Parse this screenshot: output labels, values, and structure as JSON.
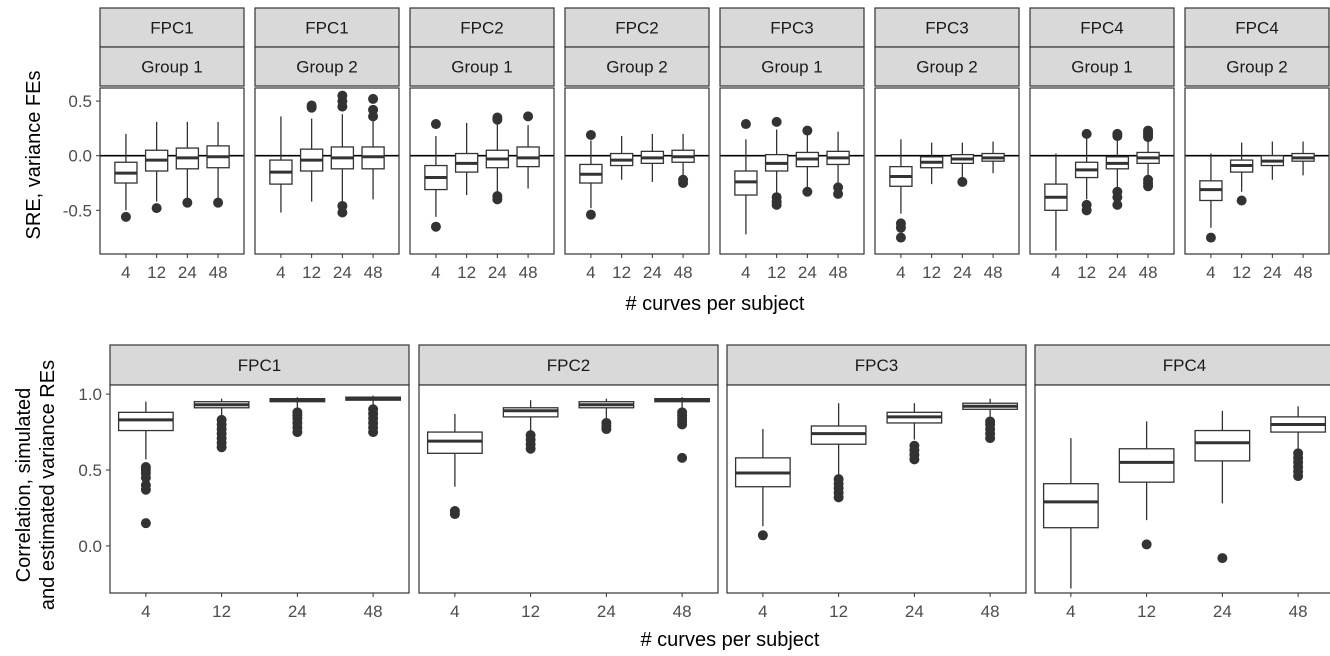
{
  "chart_data": [
    {
      "type": "boxplot",
      "xlabel": "# curves per subject",
      "ylabel": "SRE, variance FEs",
      "categories": [
        "4",
        "12",
        "24",
        "48"
      ],
      "yticks": [
        "0.5",
        "0.0",
        "-0.5"
      ],
      "ylim": [
        -0.9,
        0.62
      ],
      "reference_line_y": 0,
      "panels": [
        {
          "strip1": "FPC1",
          "strip2": "Group 1",
          "boxes": [
            {
              "q1": -0.25,
              "median": -0.16,
              "q3": -0.06,
              "whisker_low": -0.5,
              "whisker_high": 0.2,
              "outliers": [
                -0.56
              ]
            },
            {
              "q1": -0.14,
              "median": -0.04,
              "q3": 0.05,
              "whisker_low": -0.42,
              "whisker_high": 0.31,
              "outliers": [
                -0.48
              ]
            },
            {
              "q1": -0.12,
              "median": -0.02,
              "q3": 0.07,
              "whisker_low": -0.4,
              "whisker_high": 0.31,
              "outliers": [
                -0.43
              ]
            },
            {
              "q1": -0.11,
              "median": -0.01,
              "q3": 0.09,
              "whisker_low": -0.4,
              "whisker_high": 0.31,
              "outliers": [
                -0.43
              ]
            }
          ]
        },
        {
          "strip1": "FPC1",
          "strip2": "Group 2",
          "boxes": [
            {
              "q1": -0.26,
              "median": -0.15,
              "q3": -0.04,
              "whisker_low": -0.52,
              "whisker_high": 0.36,
              "outliers": []
            },
            {
              "q1": -0.14,
              "median": -0.04,
              "q3": 0.06,
              "whisker_low": -0.42,
              "whisker_high": 0.34,
              "outliers": [
                0.44,
                0.46
              ]
            },
            {
              "q1": -0.12,
              "median": -0.02,
              "q3": 0.08,
              "whisker_low": -0.42,
              "whisker_high": 0.38,
              "outliers": [
                -0.46,
                -0.52,
                0.45,
                0.5,
                0.55
              ]
            },
            {
              "q1": -0.12,
              "median": -0.01,
              "q3": 0.08,
              "whisker_low": -0.4,
              "whisker_high": 0.32,
              "outliers": [
                0.36,
                0.42,
                0.52
              ]
            }
          ]
        },
        {
          "strip1": "FPC2",
          "strip2": "Group 1",
          "boxes": [
            {
              "q1": -0.31,
              "median": -0.2,
              "q3": -0.09,
              "whisker_low": -0.56,
              "whisker_high": 0.18,
              "outliers": [
                -0.65,
                0.29
              ]
            },
            {
              "q1": -0.15,
              "median": -0.07,
              "q3": 0.02,
              "whisker_low": -0.36,
              "whisker_high": 0.3,
              "outliers": []
            },
            {
              "q1": -0.11,
              "median": -0.03,
              "q3": 0.05,
              "whisker_low": -0.33,
              "whisker_high": 0.3,
              "outliers": [
                -0.37,
                -0.4,
                0.33,
                0.35
              ]
            },
            {
              "q1": -0.1,
              "median": -0.02,
              "q3": 0.08,
              "whisker_low": -0.3,
              "whisker_high": 0.28,
              "outliers": [
                0.36
              ]
            }
          ]
        },
        {
          "strip1": "FPC2",
          "strip2": "Group 2",
          "boxes": [
            {
              "q1": -0.25,
              "median": -0.17,
              "q3": -0.08,
              "whisker_low": -0.48,
              "whisker_high": 0.14,
              "outliers": [
                -0.54,
                0.19
              ]
            },
            {
              "q1": -0.09,
              "median": -0.04,
              "q3": 0.02,
              "whisker_low": -0.22,
              "whisker_high": 0.18,
              "outliers": []
            },
            {
              "q1": -0.07,
              "median": -0.02,
              "q3": 0.04,
              "whisker_low": -0.24,
              "whisker_high": 0.2,
              "outliers": []
            },
            {
              "q1": -0.06,
              "median": -0.01,
              "q3": 0.05,
              "whisker_low": -0.22,
              "whisker_high": 0.2,
              "outliers": [
                -0.22,
                -0.25
              ]
            }
          ]
        },
        {
          "strip1": "FPC3",
          "strip2": "Group 1",
          "boxes": [
            {
              "q1": -0.36,
              "median": -0.24,
              "q3": -0.14,
              "whisker_low": -0.72,
              "whisker_high": 0.15,
              "outliers": [
                0.29
              ]
            },
            {
              "q1": -0.14,
              "median": -0.07,
              "q3": 0.01,
              "whisker_low": -0.35,
              "whisker_high": 0.24,
              "outliers": [
                -0.38,
                -0.42,
                -0.45,
                0.31
              ]
            },
            {
              "q1": -0.1,
              "median": -0.03,
              "q3": 0.03,
              "whisker_low": -0.3,
              "whisker_high": 0.2,
              "outliers": [
                -0.33,
                0.23
              ]
            },
            {
              "q1": -0.08,
              "median": -0.02,
              "q3": 0.04,
              "whisker_low": -0.25,
              "whisker_high": 0.22,
              "outliers": [
                -0.29,
                -0.35
              ]
            }
          ]
        },
        {
          "strip1": "FPC3",
          "strip2": "Group 2",
          "boxes": [
            {
              "q1": -0.28,
              "median": -0.19,
              "q3": -0.1,
              "whisker_low": -0.53,
              "whisker_high": 0.15,
              "outliers": [
                -0.62,
                -0.66,
                -0.75
              ]
            },
            {
              "q1": -0.11,
              "median": -0.06,
              "q3": -0.01,
              "whisker_low": -0.26,
              "whisker_high": 0.12,
              "outliers": []
            },
            {
              "q1": -0.07,
              "median": -0.03,
              "q3": 0.01,
              "whisker_low": -0.21,
              "whisker_high": 0.12,
              "outliers": [
                -0.24
              ]
            },
            {
              "q1": -0.05,
              "median": -0.02,
              "q3": 0.02,
              "whisker_low": -0.16,
              "whisker_high": 0.13,
              "outliers": []
            }
          ]
        },
        {
          "strip1": "FPC4",
          "strip2": "Group 1",
          "boxes": [
            {
              "q1": -0.5,
              "median": -0.38,
              "q3": -0.26,
              "whisker_low": -0.87,
              "whisker_high": 0.02,
              "outliers": []
            },
            {
              "q1": -0.2,
              "median": -0.13,
              "q3": -0.06,
              "whisker_low": -0.4,
              "whisker_high": 0.16,
              "outliers": [
                -0.45,
                -0.5,
                0.2
              ]
            },
            {
              "q1": -0.12,
              "median": -0.07,
              "q3": -0.01,
              "whisker_low": -0.3,
              "whisker_high": 0.16,
              "outliers": [
                -0.33,
                -0.38,
                -0.45,
                0.18,
                0.2
              ]
            },
            {
              "q1": -0.07,
              "median": -0.02,
              "q3": 0.03,
              "whisker_low": -0.22,
              "whisker_high": 0.14,
              "outliers": [
                -0.22,
                -0.25,
                -0.28,
                0.17,
                0.19,
                0.21,
                0.23
              ]
            }
          ]
        },
        {
          "strip1": "FPC4",
          "strip2": "Group 2",
          "boxes": [
            {
              "q1": -0.41,
              "median": -0.31,
              "q3": -0.23,
              "whisker_low": -0.66,
              "whisker_high": 0.02,
              "outliers": [
                -0.75
              ]
            },
            {
              "q1": -0.15,
              "median": -0.09,
              "q3": -0.04,
              "whisker_low": -0.33,
              "whisker_high": 0.12,
              "outliers": [
                -0.41
              ]
            },
            {
              "q1": -0.09,
              "median": -0.05,
              "q3": 0.0,
              "whisker_low": -0.22,
              "whisker_high": 0.13,
              "outliers": []
            },
            {
              "q1": -0.05,
              "median": -0.02,
              "q3": 0.02,
              "whisker_low": -0.18,
              "whisker_high": 0.13,
              "outliers": []
            }
          ]
        }
      ]
    },
    {
      "type": "boxplot",
      "xlabel": "# curves per subject",
      "ylabel_lines": [
        "Correlation, simulated",
        "and estimated variance REs"
      ],
      "categories": [
        "4",
        "12",
        "24",
        "48"
      ],
      "yticks": [
        "1.0",
        "0.5",
        "0.0"
      ],
      "ylim": [
        -0.31,
        1.06
      ],
      "panels": [
        {
          "strip1": "FPC1",
          "boxes": [
            {
              "q1": 0.76,
              "median": 0.83,
              "q3": 0.88,
              "whisker_low": 0.57,
              "whisker_high": 0.95,
              "outliers": [
                0.15,
                0.37,
                0.4,
                0.45,
                0.48,
                0.5,
                0.52
              ]
            },
            {
              "q1": 0.91,
              "median": 0.93,
              "q3": 0.95,
              "whisker_low": 0.85,
              "whisker_high": 0.97,
              "outliers": [
                0.65,
                0.68,
                0.71,
                0.74,
                0.77,
                0.8,
                0.83
              ]
            },
            {
              "q1": 0.95,
              "median": 0.96,
              "q3": 0.97,
              "whisker_low": 0.91,
              "whisker_high": 0.98,
              "outliers": [
                0.75,
                0.78,
                0.81,
                0.84,
                0.86,
                0.88
              ]
            },
            {
              "q1": 0.96,
              "median": 0.97,
              "q3": 0.98,
              "whisker_low": 0.93,
              "whisker_high": 0.99,
              "outliers": [
                0.75,
                0.78,
                0.81,
                0.84,
                0.87,
                0.9
              ]
            }
          ]
        },
        {
          "strip1": "FPC2",
          "boxes": [
            {
              "q1": 0.61,
              "median": 0.69,
              "q3": 0.75,
              "whisker_low": 0.39,
              "whisker_high": 0.87,
              "outliers": [
                0.21,
                0.23
              ]
            },
            {
              "q1": 0.85,
              "median": 0.89,
              "q3": 0.91,
              "whisker_low": 0.76,
              "whisker_high": 0.96,
              "outliers": [
                0.64,
                0.67,
                0.7,
                0.73
              ]
            },
            {
              "q1": 0.91,
              "median": 0.93,
              "q3": 0.95,
              "whisker_low": 0.84,
              "whisker_high": 0.97,
              "outliers": [
                0.77,
                0.79,
                0.81
              ]
            },
            {
              "q1": 0.95,
              "median": 0.96,
              "q3": 0.97,
              "whisker_low": 0.91,
              "whisker_high": 0.98,
              "outliers": [
                0.58,
                0.8,
                0.82,
                0.84,
                0.86,
                0.88
              ]
            }
          ]
        },
        {
          "strip1": "FPC3",
          "boxes": [
            {
              "q1": 0.39,
              "median": 0.48,
              "q3": 0.58,
              "whisker_low": 0.13,
              "whisker_high": 0.77,
              "outliers": [
                0.07
              ]
            },
            {
              "q1": 0.67,
              "median": 0.74,
              "q3": 0.79,
              "whisker_low": 0.46,
              "whisker_high": 0.94,
              "outliers": [
                0.32,
                0.35,
                0.38,
                0.41,
                0.44
              ]
            },
            {
              "q1": 0.81,
              "median": 0.85,
              "q3": 0.88,
              "whisker_low": 0.7,
              "whisker_high": 0.94,
              "outliers": [
                0.57,
                0.6,
                0.63,
                0.66
              ]
            },
            {
              "q1": 0.9,
              "median": 0.92,
              "q3": 0.94,
              "whisker_low": 0.84,
              "whisker_high": 0.97,
              "outliers": [
                0.71,
                0.74,
                0.77,
                0.8,
                0.82
              ]
            }
          ]
        },
        {
          "strip1": "FPC4",
          "boxes": [
            {
              "q1": 0.12,
              "median": 0.29,
              "q3": 0.41,
              "whisker_low": -0.28,
              "whisker_high": 0.71,
              "outliers": []
            },
            {
              "q1": 0.42,
              "median": 0.55,
              "q3": 0.64,
              "whisker_low": 0.17,
              "whisker_high": 0.82,
              "outliers": [
                0.01
              ]
            },
            {
              "q1": 0.56,
              "median": 0.68,
              "q3": 0.76,
              "whisker_low": 0.28,
              "whisker_high": 0.89,
              "outliers": [
                -0.08
              ]
            },
            {
              "q1": 0.75,
              "median": 0.8,
              "q3": 0.85,
              "whisker_low": 0.64,
              "whisker_high": 0.92,
              "outliers": [
                0.46,
                0.49,
                0.52,
                0.55,
                0.58,
                0.61
              ]
            }
          ]
        }
      ]
    }
  ]
}
